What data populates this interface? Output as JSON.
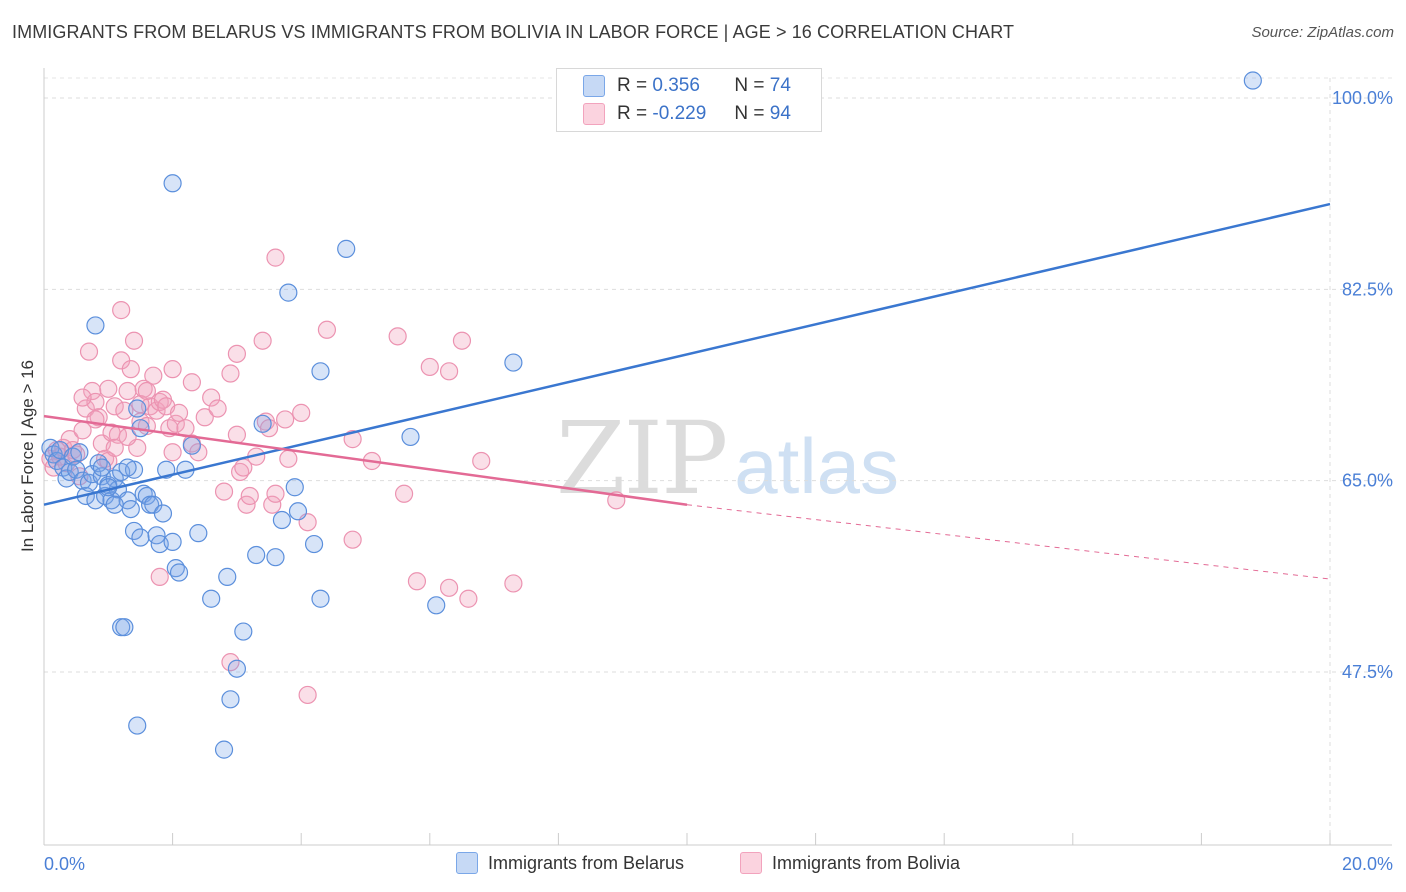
{
  "title": "IMMIGRANTS FROM BELARUS VS IMMIGRANTS FROM BOLIVIA IN LABOR FORCE | AGE > 16 CORRELATION CHART",
  "source": "Source: ZipAtlas.com",
  "watermark": {
    "zip": "ZIP",
    "atlas": "atlas"
  },
  "legend": [
    {
      "r_label": "R = ",
      "r_value": "0.356",
      "n_label": "N = ",
      "n_value": "74"
    },
    {
      "r_label": "R = ",
      "r_value": "-0.229",
      "n_label": "N = ",
      "n_value": "94"
    }
  ],
  "chart_data": {
    "type": "scatter",
    "ylabel": "In Labor Force | Age > 16",
    "xlim": [
      0,
      20
    ],
    "ylim": [
      32.5,
      102
    ],
    "y_ticks": [
      47.5,
      65.0,
      82.5,
      100.0
    ],
    "y_tick_labels": [
      "47.5%",
      "65.0%",
      "82.5%",
      "100.0%"
    ],
    "x_tick_labels": [
      "0.0%",
      "20.0%"
    ],
    "grid": true,
    "colors": {
      "belarus": "#7aa7e8",
      "bolivia": "#f2a3bd",
      "belarus_line": "#3a77d0",
      "bolivia_line": "#e36a95"
    },
    "series": [
      {
        "name": "Immigrants from Belarus",
        "trend": {
          "x0": 0,
          "y0": 62.8,
          "x1": 20,
          "y1": 90.3,
          "dashed_from": null
        },
        "points": [
          [
            0.1,
            68.0
          ],
          [
            0.15,
            67.4
          ],
          [
            0.2,
            66.8
          ],
          [
            0.25,
            67.8
          ],
          [
            0.3,
            66.2
          ],
          [
            0.35,
            65.2
          ],
          [
            0.4,
            65.8
          ],
          [
            0.45,
            67.2
          ],
          [
            0.5,
            66.0
          ],
          [
            0.55,
            67.6
          ],
          [
            0.6,
            65.0
          ],
          [
            0.65,
            63.6
          ],
          [
            0.7,
            64.8
          ],
          [
            0.75,
            65.6
          ],
          [
            0.8,
            63.2
          ],
          [
            0.85,
            66.6
          ],
          [
            0.9,
            65.4
          ],
          [
            0.95,
            63.6
          ],
          [
            1.0,
            64.6
          ],
          [
            1.05,
            63.2
          ],
          [
            1.1,
            65.2
          ],
          [
            1.15,
            64.2
          ],
          [
            1.2,
            65.8
          ],
          [
            1.3,
            63.2
          ],
          [
            1.35,
            62.4
          ],
          [
            1.4,
            66.0
          ],
          [
            1.45,
            71.6
          ],
          [
            1.5,
            69.8
          ],
          [
            1.55,
            63.8
          ],
          [
            1.6,
            63.6
          ],
          [
            1.65,
            62.8
          ],
          [
            1.7,
            62.8
          ],
          [
            1.75,
            60.0
          ],
          [
            1.8,
            59.2
          ],
          [
            1.85,
            62.0
          ],
          [
            1.9,
            66.0
          ],
          [
            2.0,
            59.4
          ],
          [
            2.05,
            57.0
          ],
          [
            2.1,
            56.6
          ],
          [
            2.2,
            66.0
          ],
          [
            1.4,
            60.4
          ],
          [
            1.5,
            59.8
          ],
          [
            0.8,
            79.2
          ],
          [
            0.9,
            66.2
          ],
          [
            1.0,
            64.4
          ],
          [
            1.1,
            62.8
          ],
          [
            1.2,
            51.6
          ],
          [
            1.25,
            51.6
          ],
          [
            1.45,
            42.6
          ],
          [
            1.3,
            66.2
          ],
          [
            2.4,
            60.2
          ],
          [
            2.6,
            54.2
          ],
          [
            2.85,
            56.2
          ],
          [
            2.9,
            45.0
          ],
          [
            3.0,
            47.8
          ],
          [
            3.1,
            51.2
          ],
          [
            3.3,
            58.2
          ],
          [
            3.4,
            70.2
          ],
          [
            3.7,
            61.4
          ],
          [
            3.6,
            58.0
          ],
          [
            3.8,
            82.2
          ],
          [
            3.9,
            64.4
          ],
          [
            3.95,
            62.2
          ],
          [
            4.2,
            59.2
          ],
          [
            4.3,
            54.2
          ],
          [
            4.3,
            75.0
          ],
          [
            4.7,
            86.2
          ],
          [
            5.7,
            69.0
          ],
          [
            6.1,
            53.6
          ],
          [
            7.3,
            75.8
          ],
          [
            18.8,
            101.6
          ],
          [
            2.0,
            92.2
          ],
          [
            2.8,
            40.4
          ],
          [
            2.3,
            68.2
          ]
        ]
      },
      {
        "name": "Immigrants from Bolivia",
        "trend": {
          "x0": 0,
          "y0": 70.9,
          "x1": 10,
          "y1": 62.8,
          "dashed_from": 10,
          "x2": 20,
          "y2": 56.0
        },
        "points": [
          [
            0.1,
            67.0
          ],
          [
            0.15,
            66.2
          ],
          [
            0.2,
            67.8
          ],
          [
            0.25,
            67.2
          ],
          [
            0.3,
            68.0
          ],
          [
            0.35,
            66.6
          ],
          [
            0.4,
            68.8
          ],
          [
            0.45,
            67.8
          ],
          [
            0.5,
            67.4
          ],
          [
            0.55,
            65.4
          ],
          [
            0.6,
            69.6
          ],
          [
            0.65,
            71.6
          ],
          [
            0.7,
            76.8
          ],
          [
            0.75,
            73.2
          ],
          [
            0.8,
            72.2
          ],
          [
            0.85,
            70.8
          ],
          [
            0.9,
            68.4
          ],
          [
            0.95,
            67.0
          ],
          [
            1.0,
            73.4
          ],
          [
            1.05,
            69.4
          ],
          [
            1.1,
            71.8
          ],
          [
            1.15,
            69.2
          ],
          [
            1.2,
            76.0
          ],
          [
            1.25,
            71.4
          ],
          [
            1.3,
            73.2
          ],
          [
            1.35,
            75.2
          ],
          [
            1.4,
            77.8
          ],
          [
            1.45,
            68.0
          ],
          [
            1.5,
            70.4
          ],
          [
            1.55,
            73.4
          ],
          [
            1.6,
            70.0
          ],
          [
            1.65,
            71.8
          ],
          [
            1.7,
            74.6
          ],
          [
            1.75,
            71.4
          ],
          [
            1.8,
            72.2
          ],
          [
            1.85,
            72.4
          ],
          [
            1.9,
            71.8
          ],
          [
            1.95,
            69.8
          ],
          [
            2.0,
            67.6
          ],
          [
            2.05,
            70.2
          ],
          [
            2.1,
            71.2
          ],
          [
            2.2,
            69.8
          ],
          [
            2.3,
            68.4
          ],
          [
            2.4,
            67.6
          ],
          [
            2.5,
            70.8
          ],
          [
            2.6,
            72.6
          ],
          [
            2.7,
            71.6
          ],
          [
            2.8,
            64.0
          ],
          [
            2.9,
            74.8
          ],
          [
            3.0,
            69.2
          ],
          [
            3.05,
            65.8
          ],
          [
            3.1,
            66.2
          ],
          [
            3.15,
            62.8
          ],
          [
            3.2,
            63.6
          ],
          [
            3.3,
            67.2
          ],
          [
            3.4,
            77.8
          ],
          [
            3.45,
            70.4
          ],
          [
            3.5,
            69.8
          ],
          [
            3.55,
            62.8
          ],
          [
            3.6,
            63.8
          ],
          [
            3.75,
            70.6
          ],
          [
            3.8,
            67.0
          ],
          [
            4.0,
            71.2
          ],
          [
            4.1,
            61.2
          ],
          [
            4.4,
            78.8
          ],
          [
            4.8,
            68.8
          ],
          [
            4.8,
            59.6
          ],
          [
            5.1,
            66.8
          ],
          [
            5.5,
            78.2
          ],
          [
            5.6,
            63.8
          ],
          [
            5.8,
            55.8
          ],
          [
            6.0,
            75.4
          ],
          [
            6.3,
            55.2
          ],
          [
            6.3,
            75.0
          ],
          [
            6.5,
            77.8
          ],
          [
            6.6,
            54.2
          ],
          [
            6.8,
            66.8
          ],
          [
            7.3,
            55.6
          ],
          [
            8.9,
            63.2
          ],
          [
            2.9,
            48.4
          ],
          [
            3.0,
            76.6
          ],
          [
            3.6,
            85.4
          ],
          [
            4.1,
            45.4
          ],
          [
            1.2,
            80.6
          ],
          [
            0.6,
            72.6
          ],
          [
            0.8,
            70.6
          ],
          [
            1.0,
            66.8
          ],
          [
            1.3,
            69.0
          ],
          [
            1.1,
            68.0
          ],
          [
            1.5,
            72.0
          ],
          [
            1.6,
            73.2
          ],
          [
            1.8,
            56.2
          ],
          [
            2.0,
            75.2
          ],
          [
            2.3,
            74.0
          ]
        ]
      }
    ]
  },
  "bottom_legend": [
    "Immigrants from Belarus",
    "Immigrants from Bolivia"
  ]
}
